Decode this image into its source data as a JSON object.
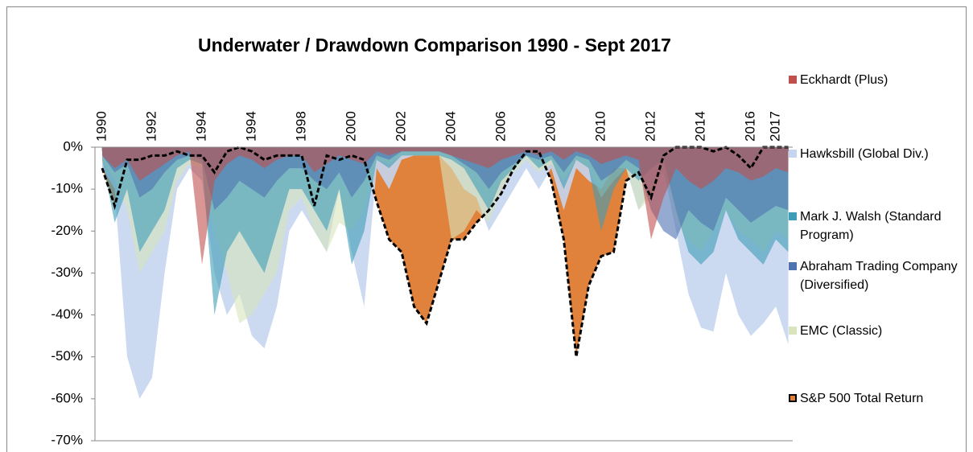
{
  "chart_data": {
    "type": "area",
    "title": "Underwater / Drawdown Comparison 1990 - Sept 2017",
    "categories": [
      "1990",
      null,
      null,
      null,
      "1992",
      null,
      null,
      null,
      "1994",
      null,
      null,
      null,
      "1994",
      null,
      null,
      null,
      "1998",
      null,
      null,
      null,
      "2000",
      null,
      null,
      null,
      "2002",
      null,
      null,
      null,
      "2004",
      null,
      null,
      null,
      "2006",
      null,
      null,
      null,
      "2008",
      null,
      null,
      null,
      "2010",
      null,
      null,
      null,
      "2012",
      null,
      null,
      null,
      "2014",
      null,
      null,
      null,
      "2016",
      null,
      "2017",
      null
    ],
    "ylim": [
      -70,
      0
    ],
    "yticks": [
      {
        "value": 0,
        "label": "0%"
      },
      {
        "value": -10,
        "label": "-10%"
      },
      {
        "value": -20,
        "label": "-20%"
      },
      {
        "value": -30,
        "label": "-30%"
      },
      {
        "value": -40,
        "label": "-40%"
      },
      {
        "value": -50,
        "label": "-50%"
      },
      {
        "value": -60,
        "label": "-60%"
      },
      {
        "value": -70,
        "label": "-70%"
      }
    ],
    "legend": "right",
    "series": [
      {
        "name": "Eckhardt (Plus)",
        "color": "#c0504d",
        "values": [
          -2,
          -5,
          -3,
          -8,
          -6,
          -4,
          -2,
          -1,
          -28,
          -8,
          -4,
          -2,
          -3,
          -5,
          -3,
          -2,
          -2,
          -6,
          -4,
          -2,
          -3,
          -4,
          -1,
          -2,
          -1,
          -1,
          -1,
          -1,
          -2,
          -3,
          -4,
          -5,
          -3,
          -2,
          -1,
          -2,
          -1,
          -3,
          -1,
          -2,
          -4,
          -3,
          -2,
          -3,
          -22,
          -12,
          -5,
          -8,
          -10,
          -8,
          -5,
          -6,
          -8,
          -7,
          -5,
          -6
        ]
      },
      {
        "name": "Hawksbill (Global Div.)",
        "color": "#c5d5f0",
        "values": [
          -5,
          -10,
          -50,
          -60,
          -55,
          -30,
          -10,
          -5,
          -8,
          -30,
          -40,
          -35,
          -45,
          -48,
          -38,
          -20,
          -15,
          -20,
          -25,
          -10,
          -25,
          -38,
          -5,
          -10,
          -3,
          -2,
          -2,
          -2,
          -5,
          -10,
          -12,
          -20,
          -15,
          -10,
          -5,
          -10,
          -5,
          -15,
          -5,
          -8,
          -10,
          -5,
          -5,
          -15,
          -10,
          -5,
          -20,
          -35,
          -43,
          -44,
          -30,
          -40,
          -45,
          -42,
          -38,
          -47
        ]
      },
      {
        "name": "Mark J. Walsh (Standard Program)",
        "color": "#3d9db5",
        "values": [
          -3,
          -18,
          -10,
          -25,
          -20,
          -15,
          -5,
          -3,
          -4,
          -40,
          -25,
          -20,
          -25,
          -30,
          -20,
          -10,
          -10,
          -15,
          -20,
          -10,
          -28,
          -20,
          -3,
          -5,
          -2,
          -2,
          -2,
          -2,
          -3,
          -5,
          -10,
          -15,
          -8,
          -5,
          -2,
          -5,
          -3,
          -10,
          -3,
          -5,
          -20,
          -10,
          -5,
          -8,
          -5,
          -3,
          -15,
          -25,
          -28,
          -25,
          -15,
          -22,
          -25,
          -28,
          -22,
          -25
        ]
      },
      {
        "name": "Abraham Trading Company (Diversified)",
        "color": "#4f72b0",
        "values": [
          -2,
          -6,
          -4,
          -12,
          -10,
          -6,
          -3,
          -2,
          -3,
          -15,
          -12,
          -8,
          -10,
          -12,
          -8,
          -5,
          -5,
          -8,
          -10,
          -6,
          -12,
          -8,
          -2,
          -3,
          -1,
          -1,
          -1,
          -1,
          -2,
          -4,
          -6,
          -10,
          -6,
          -4,
          -2,
          -3,
          -2,
          -6,
          -2,
          -3,
          -8,
          -6,
          -3,
          -5,
          -15,
          -20,
          -22,
          -15,
          -18,
          -20,
          -12,
          -15,
          -18,
          -16,
          -14,
          -15
        ]
      },
      {
        "name": "EMC (Classic)",
        "color": "#d7e4bd",
        "values": [
          -3,
          -8,
          -15,
          -30,
          -25,
          -20,
          -8,
          -4,
          -5,
          -20,
          -30,
          -42,
          -40,
          -35,
          -30,
          -15,
          -12,
          -20,
          -25,
          -18,
          -20,
          -15,
          -3,
          -4,
          -2,
          -2,
          -2,
          -2,
          -22,
          -20,
          -15,
          -18,
          -10,
          -6,
          -3,
          -6,
          -4,
          -8,
          -3,
          -5,
          -12,
          -8,
          -5,
          -15,
          -12,
          -6,
          -18,
          -22,
          -25,
          -20,
          -15,
          -20,
          -22,
          -25,
          -20,
          -22
        ]
      },
      {
        "name": "S&P 500 Total Return",
        "color": "#e0823c",
        "line_color": "#000000",
        "values": [
          -5,
          -14,
          -3,
          -3,
          -2,
          -2,
          -1,
          -2,
          -2,
          -6,
          -1,
          0,
          -1,
          -3,
          -2,
          -2,
          -2,
          -14,
          -2,
          -3,
          -2,
          -3,
          -13,
          -22,
          -25,
          -38,
          -42,
          -32,
          -22,
          -22,
          -18,
          -15,
          -11,
          -5,
          -1,
          -1,
          -8,
          -22,
          -50,
          -33,
          -26,
          -25,
          -8,
          -6,
          -12,
          -2,
          0,
          0,
          0,
          -1,
          0,
          -2,
          -5,
          0,
          0,
          0
        ]
      }
    ]
  }
}
